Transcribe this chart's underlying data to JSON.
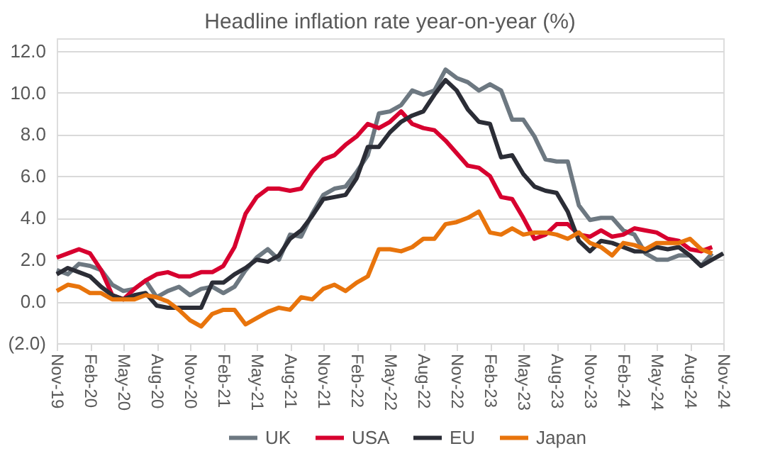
{
  "chart_data": {
    "type": "line",
    "title": "Headline inflation rate year-on-year (%)",
    "categories": [
      "Nov-19",
      null,
      null,
      "Feb-20",
      null,
      null,
      "May-20",
      null,
      null,
      "Aug-20",
      null,
      null,
      "Nov-20",
      null,
      null,
      "Feb-21",
      null,
      null,
      "May-21",
      null,
      null,
      "Aug-21",
      null,
      null,
      "Nov-21",
      null,
      null,
      "Feb-22",
      null,
      null,
      "May-22",
      null,
      null,
      "Aug-22",
      null,
      null,
      "Nov-22",
      null,
      null,
      "Feb-23",
      null,
      null,
      "May-23",
      null,
      null,
      "Aug-23",
      null,
      null,
      "Nov-23",
      null,
      null,
      "Feb-24",
      null,
      null,
      "May-24",
      null,
      null,
      "Aug-24",
      null,
      null,
      "Nov-24"
    ],
    "series": [
      {
        "name": "UK",
        "color": "#6d7881",
        "values": [
          1.5,
          1.3,
          1.8,
          1.7,
          1.5,
          0.8,
          0.5,
          0.6,
          1.0,
          0.2,
          0.5,
          0.7,
          0.3,
          0.6,
          0.7,
          0.4,
          0.7,
          1.5,
          2.1,
          2.5,
          2.0,
          3.2,
          3.1,
          4.2,
          5.1,
          5.4,
          5.5,
          6.2,
          7.0,
          9.0,
          9.1,
          9.4,
          10.1,
          9.9,
          10.1,
          11.1,
          10.7,
          10.5,
          10.1,
          10.4,
          10.1,
          8.7,
          8.7,
          7.9,
          6.8,
          6.7,
          6.7,
          4.6,
          3.9,
          4.0,
          4.0,
          3.4,
          3.2,
          2.3,
          2.0,
          2.0,
          2.2,
          2.2,
          1.7,
          2.3,
          null
        ]
      },
      {
        "name": "USA",
        "color": "#d7002f",
        "values": [
          2.1,
          2.3,
          2.5,
          2.3,
          1.5,
          0.3,
          0.1,
          0.6,
          1.0,
          1.3,
          1.4,
          1.2,
          1.2,
          1.4,
          1.4,
          1.7,
          2.6,
          4.2,
          5.0,
          5.4,
          5.4,
          5.3,
          5.4,
          6.2,
          6.8,
          7.0,
          7.5,
          7.9,
          8.5,
          8.3,
          8.6,
          9.1,
          8.5,
          8.3,
          8.2,
          7.7,
          7.1,
          6.5,
          6.4,
          6.0,
          5.0,
          4.9,
          4.0,
          3.0,
          3.2,
          3.7,
          3.7,
          3.2,
          3.1,
          3.4,
          3.1,
          3.2,
          3.5,
          3.4,
          3.3,
          3.0,
          2.9,
          2.5,
          2.4,
          2.6,
          null
        ]
      },
      {
        "name": "EU",
        "color": "#2b2d36",
        "values": [
          1.3,
          1.6,
          1.4,
          1.2,
          0.7,
          0.3,
          0.1,
          0.3,
          0.4,
          -0.2,
          -0.3,
          -0.3,
          -0.3,
          -0.3,
          0.9,
          0.9,
          1.3,
          1.6,
          2.0,
          1.9,
          2.2,
          3.0,
          3.4,
          4.1,
          4.9,
          5.0,
          5.1,
          5.9,
          7.4,
          7.4,
          8.1,
          8.6,
          8.9,
          9.1,
          9.9,
          10.6,
          10.1,
          9.2,
          8.6,
          8.5,
          6.9,
          7.0,
          6.1,
          5.5,
          5.3,
          5.2,
          4.3,
          2.9,
          2.4,
          2.9,
          2.8,
          2.6,
          2.4,
          2.4,
          2.6,
          2.5,
          2.6,
          2.2,
          1.7,
          2.0,
          2.3
        ]
      },
      {
        "name": "Japan",
        "color": "#e8740c",
        "values": [
          0.5,
          0.8,
          0.7,
          0.4,
          0.4,
          0.1,
          0.1,
          0.1,
          0.3,
          0.2,
          0.0,
          -0.4,
          -0.9,
          -1.2,
          -0.6,
          -0.4,
          -0.4,
          -1.1,
          -0.8,
          -0.5,
          -0.3,
          -0.4,
          0.2,
          0.1,
          0.6,
          0.8,
          0.5,
          0.9,
          1.2,
          2.5,
          2.5,
          2.4,
          2.6,
          3.0,
          3.0,
          3.7,
          3.8,
          4.0,
          4.3,
          3.3,
          3.2,
          3.5,
          3.2,
          3.3,
          3.3,
          3.2,
          3.0,
          3.3,
          2.8,
          2.6,
          2.2,
          2.8,
          2.7,
          2.5,
          2.8,
          2.8,
          2.8,
          3.0,
          2.5,
          2.3,
          null
        ]
      }
    ],
    "ylim": [
      -2,
      12.6
    ],
    "yticks": [
      {
        "value": -2,
        "label": "(2.0)"
      },
      {
        "value": 0,
        "label": "0.0"
      },
      {
        "value": 2,
        "label": "2.0"
      },
      {
        "value": 4,
        "label": "4.0"
      },
      {
        "value": 6,
        "label": "6.0"
      },
      {
        "value": 8,
        "label": "8.0"
      },
      {
        "value": 10,
        "label": "10.0"
      },
      {
        "value": 12,
        "label": "12.0"
      }
    ],
    "grid": "y",
    "legend": "bottom",
    "marker": "none",
    "line_style": "solid"
  }
}
